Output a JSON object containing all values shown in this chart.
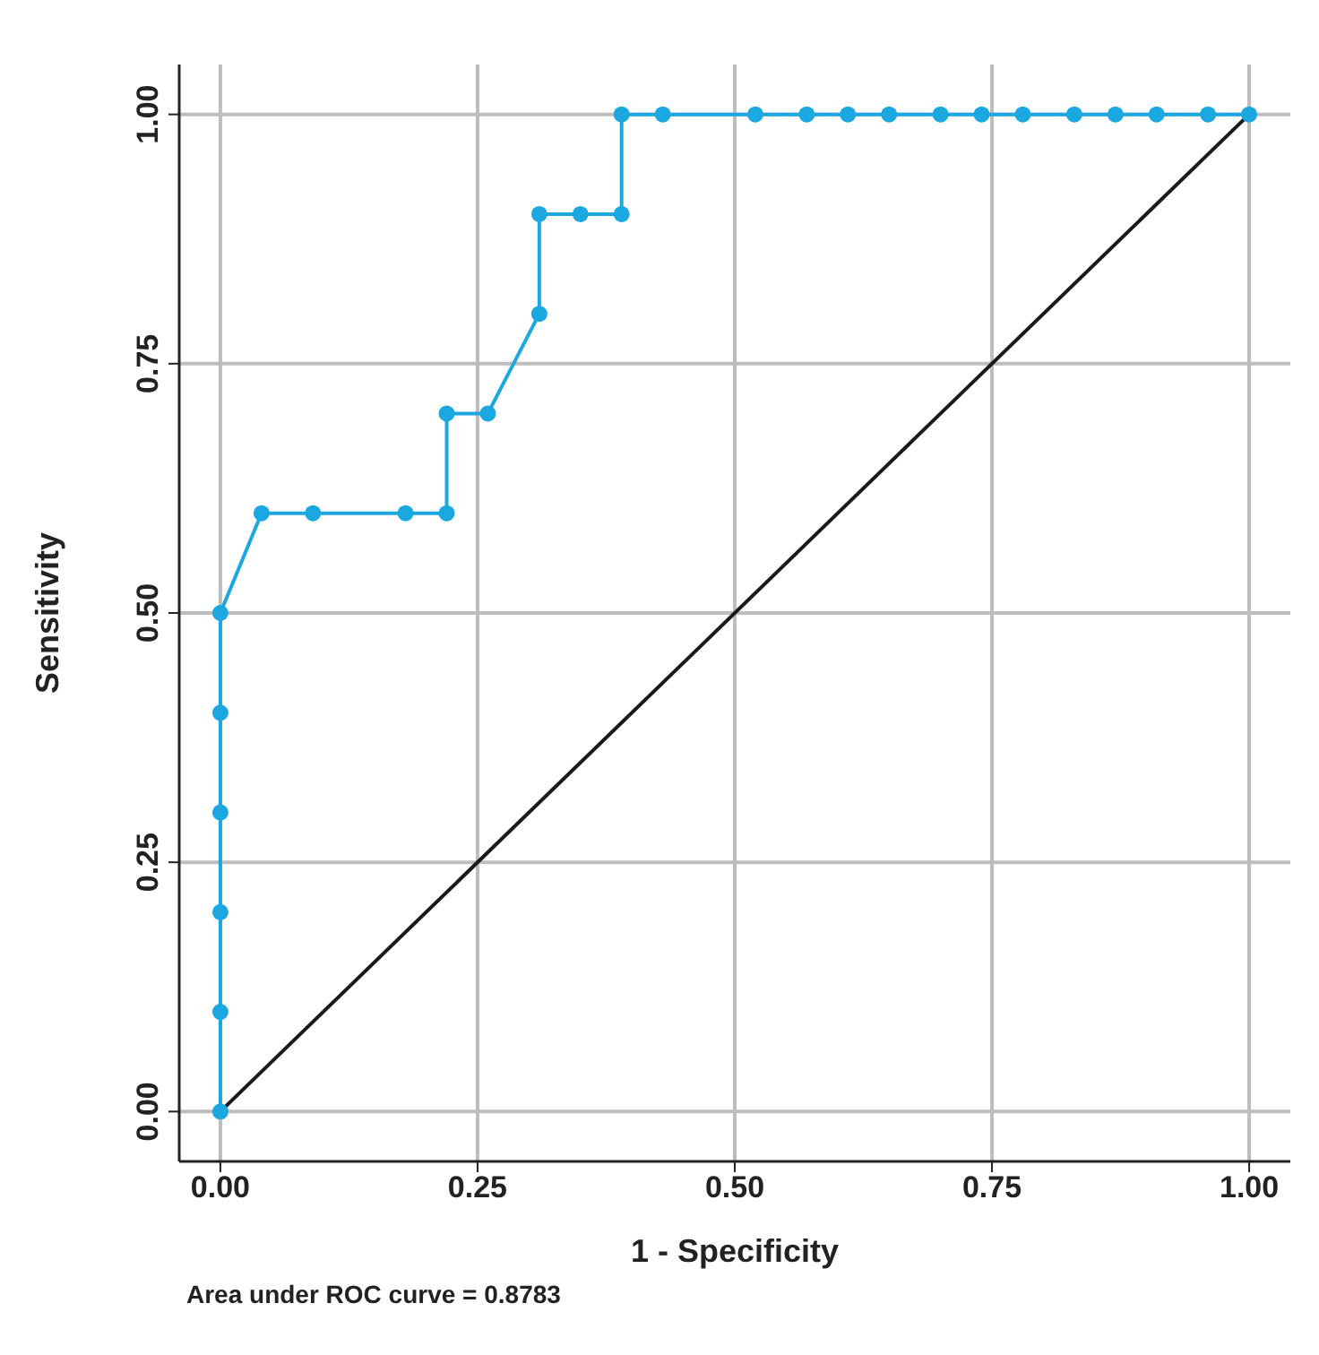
{
  "chart_data": {
    "type": "line",
    "xlabel": "1 - Specificity",
    "ylabel": "Sensitivity",
    "xlim": [
      -0.04,
      1.04
    ],
    "ylim": [
      -0.05,
      1.05
    ],
    "xticks": [
      {
        "value": 0,
        "label": "0.00"
      },
      {
        "value": 0.25,
        "label": "0.25"
      },
      {
        "value": 0.5,
        "label": "0.50"
      },
      {
        "value": 0.75,
        "label": "0.75"
      },
      {
        "value": 1,
        "label": "1.00"
      }
    ],
    "yticks": [
      {
        "value": 0,
        "label": "0.00"
      },
      {
        "value": 0.25,
        "label": "0.25"
      },
      {
        "value": 0.5,
        "label": "0.50"
      },
      {
        "value": 0.75,
        "label": "0.75"
      },
      {
        "value": 1,
        "label": "1.00"
      }
    ],
    "grid": true,
    "line_style": "solid",
    "series": [
      {
        "color": "#1ba8e0",
        "marker": "circle",
        "x": [
          0,
          0,
          0,
          0,
          0,
          0,
          0.04,
          0.09,
          0.18,
          0.22,
          0.22,
          0.26,
          0.31,
          0.31,
          0.35,
          0.39,
          0.39,
          0.43,
          0.52,
          0.57,
          0.61,
          0.65,
          0.7,
          0.74,
          0.78,
          0.83,
          0.87,
          0.91,
          0.96,
          1.0
        ],
        "values": [
          0,
          0.1,
          0.2,
          0.3,
          0.4,
          0.5,
          0.6,
          0.6,
          0.6,
          0.6,
          0.7,
          0.7,
          0.8,
          0.9,
          0.9,
          0.9,
          1,
          1,
          1,
          1,
          1,
          1,
          1,
          1,
          1,
          1,
          1,
          1,
          1,
          1
        ]
      },
      {
        "color": "#1a1a1a",
        "marker": "none",
        "x": [
          0,
          1
        ],
        "values": [
          0,
          1
        ]
      }
    ],
    "annotations": [
      "Area under ROC curve = 0.8783"
    ]
  }
}
